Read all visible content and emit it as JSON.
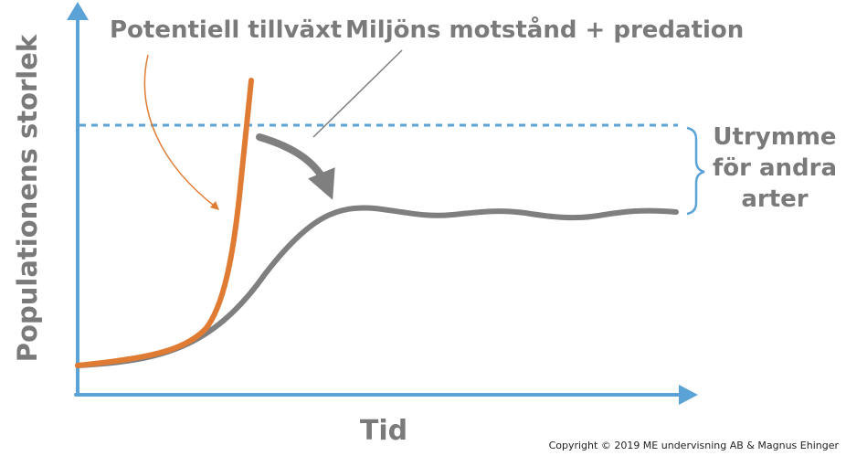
{
  "labels": {
    "y_axis": "Populationens storlek",
    "x_axis": "Tid",
    "potential_growth": "Potentiell tillväxt",
    "resistance": "Miljöns motstånd + predation",
    "room_line1": "Utrymme",
    "room_line2": "för andra",
    "room_line3": "arter"
  },
  "copyright": "Copyright © 2019 ME undervisning AB & Magnus Ehinger",
  "colors": {
    "axis": "#5ba3d6",
    "exponential_curve": "#e07b34",
    "logistic_curve": "#7f7f7f",
    "carrying_capacity_line": "#5ba3d6",
    "text": "#7a7a7a",
    "brace": "#5ba3d6"
  }
}
